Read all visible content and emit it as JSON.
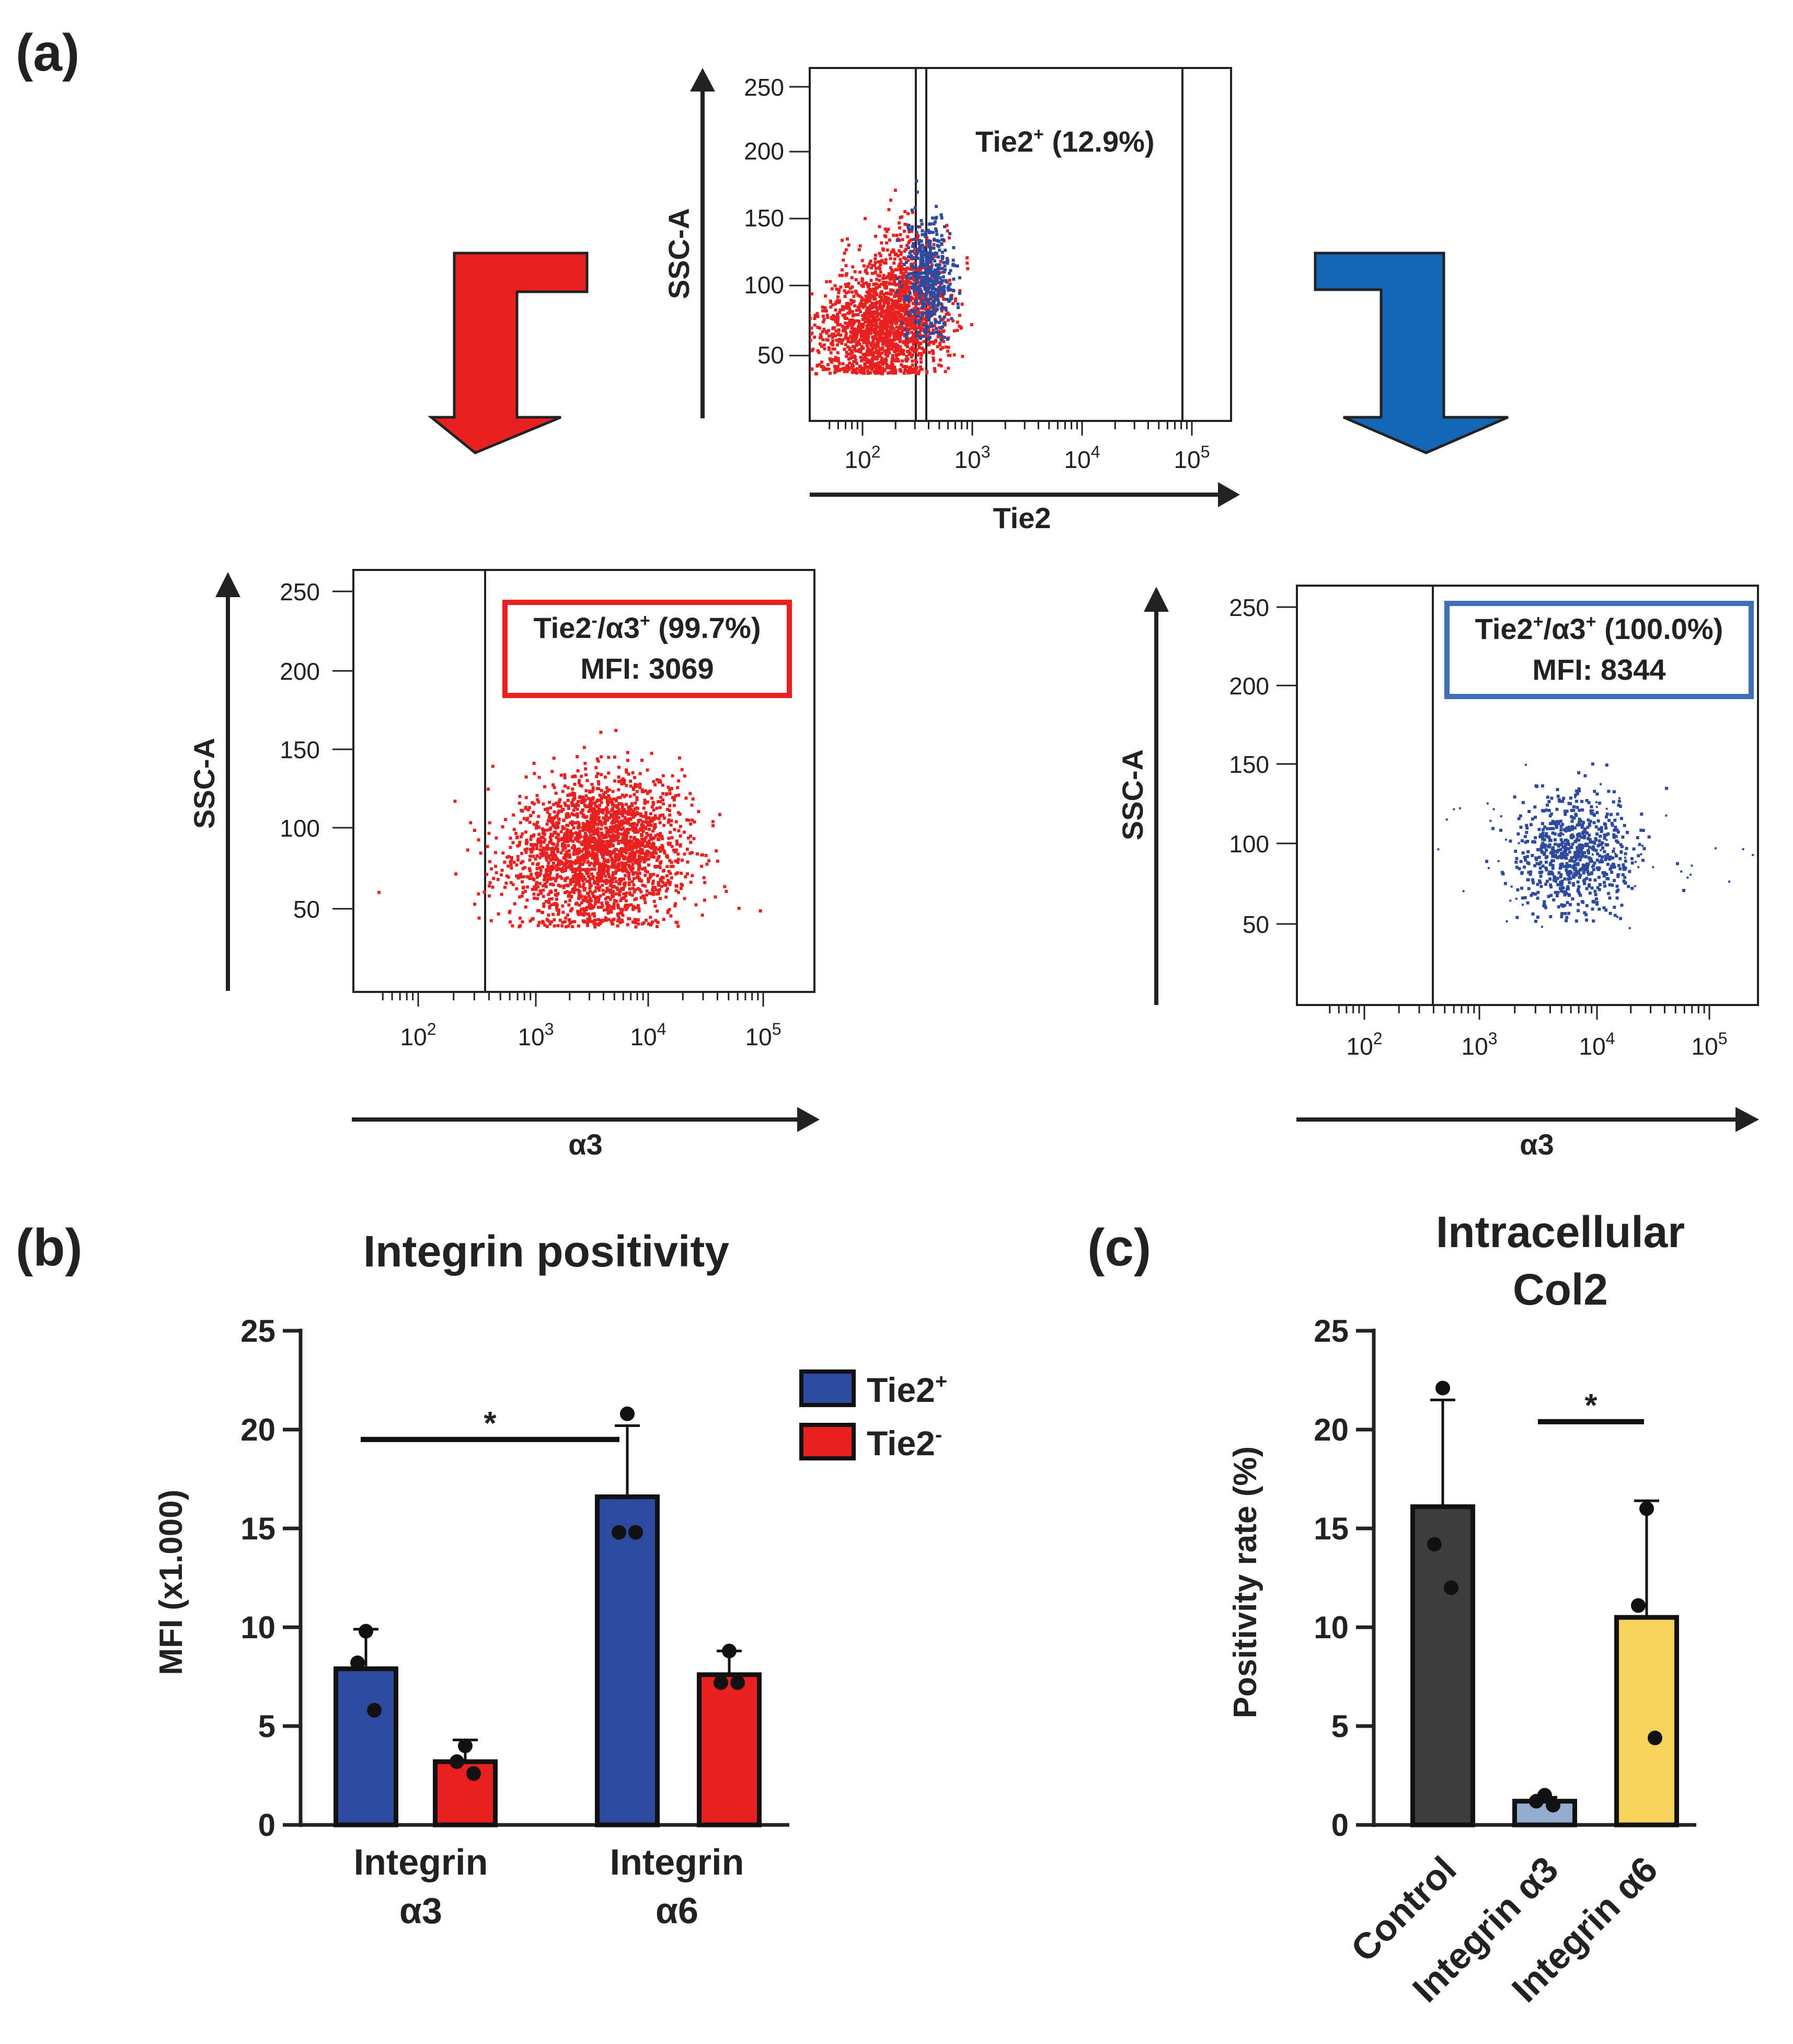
{
  "panel_labels": {
    "a": "(a)",
    "b": "(b)",
    "c": "(c)"
  },
  "colors": {
    "tie2_pos": "#2e4a9e",
    "tie2_neg": "#e8201f",
    "gate_red": "#e8201f",
    "gate_blue": "#3f6fb8",
    "arrow_red": "#e8201f",
    "arrow_blue": "#1565b5",
    "control": "#3d3d3d",
    "integrin_a3": "#93acd0",
    "integrin_a6": "#f8d35b"
  },
  "top_plot": {
    "ylabel": "SSC-A",
    "xlabel": "Tie2",
    "yticks": [
      "250",
      "200",
      "150",
      "100",
      "50"
    ],
    "xticks_base": [
      "10",
      "10",
      "10",
      "10"
    ],
    "xticks_exp": [
      "2",
      "3",
      "4",
      "5"
    ],
    "gate_label_main": "Tie2",
    "gate_label_sup": "+",
    "gate_label_pct": " (12.9%)"
  },
  "left_plot": {
    "ylabel": "SSC-A",
    "xlabel": "α3",
    "yticks": [
      "250",
      "200",
      "150",
      "100",
      "50"
    ],
    "xticks_base": [
      "10",
      "10",
      "10",
      "10"
    ],
    "xticks_exp": [
      "2",
      "3",
      "4",
      "5"
    ],
    "gate_line1_a": "Tie2",
    "gate_line1_sup1": "-",
    "gate_line1_b": "/α3",
    "gate_line1_sup2": "+",
    "gate_line1_c": " (99.7%)",
    "gate_line2": "MFI: 3069"
  },
  "right_plot": {
    "ylabel": "SSC-A",
    "xlabel": "α3",
    "yticks": [
      "250",
      "200",
      "150",
      "100",
      "50"
    ],
    "xticks_base": [
      "10",
      "10",
      "10",
      "10"
    ],
    "xticks_exp": [
      "2",
      "3",
      "4",
      "5"
    ],
    "gate_line1_a": "Tie2",
    "gate_line1_sup1": "+",
    "gate_line1_b": "/α3",
    "gate_line1_sup2": "+",
    "gate_line1_c": " (100.0%)",
    "gate_line2": "MFI: 8344"
  },
  "chart_data": [
    {
      "id": "b",
      "type": "bar",
      "title": "Integrin positivity",
      "ylabel": "MFI (x1.000)",
      "xlabel": "",
      "ylim": [
        0,
        25
      ],
      "yticks": [
        "0",
        "5",
        "10",
        "15",
        "20",
        "25"
      ],
      "categories": [
        {
          "line1": "Integrin",
          "line2": "α3"
        },
        {
          "line1": "Integrin",
          "line2": "α6"
        }
      ],
      "series": [
        {
          "name": "Tie2",
          "sup": "+",
          "values": [
            7.9,
            16.6
          ],
          "errors": [
            2.0,
            3.6
          ],
          "points": [
            [
              9.8,
              8.2,
              5.8
            ],
            [
              20.8,
              14.8,
              14.8
            ]
          ]
        },
        {
          "name": "Tie2",
          "sup": "-",
          "values": [
            3.2,
            7.6
          ],
          "errors": [
            1.1,
            1.2
          ],
          "points": [
            [
              4.0,
              3.2,
              2.6
            ],
            [
              8.8,
              7.2,
              7.2
            ]
          ]
        }
      ],
      "significance": {
        "label": "*",
        "from": [
          0,
          0
        ],
        "to": [
          1,
          0
        ],
        "y": 19.5
      },
      "legend": "top-right"
    },
    {
      "id": "c",
      "type": "bar",
      "title_lines": [
        "Intracellular",
        "Col2"
      ],
      "ylabel": "Positivity rate (%)",
      "ylim": [
        0,
        25
      ],
      "yticks": [
        "0",
        "5",
        "10",
        "15",
        "20",
        "25"
      ],
      "categories": [
        "Control",
        "Integrin α3",
        "Integrin α6"
      ],
      "values": [
        16.1,
        1.2,
        10.5
      ],
      "errors": [
        5.4,
        0.2,
        5.9
      ],
      "points": [
        [
          22.1,
          14.2,
          12.0
        ],
        [
          1.5,
          1.2,
          1.0
        ],
        [
          16.0,
          11.1,
          4.4
        ]
      ],
      "significance": {
        "label": "*",
        "from": 1,
        "to": 2,
        "y": 20.4
      }
    }
  ]
}
